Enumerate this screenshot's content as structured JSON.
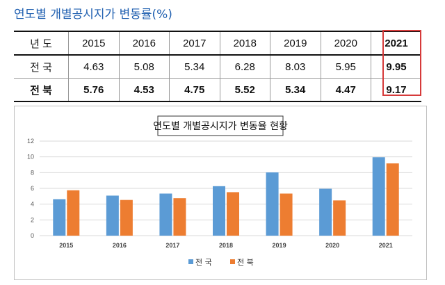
{
  "title": "연도별 개별공시지가 변동률(%)",
  "table": {
    "header_label": "년 도",
    "years": [
      "2015",
      "2016",
      "2017",
      "2018",
      "2019",
      "2020",
      "2021"
    ],
    "rows": [
      {
        "label": "전 국",
        "values": [
          "4.63",
          "5.08",
          "5.34",
          "6.28",
          "8.03",
          "5.95",
          "9.95"
        ]
      },
      {
        "label": "전 북",
        "values": [
          "5.76",
          "4.53",
          "4.75",
          "5.52",
          "5.34",
          "4.47",
          "9.17"
        ]
      }
    ],
    "highlight_color": "#d63a3a"
  },
  "chart_data": {
    "type": "bar",
    "title": "연도별 개별공시지가 변동율 현황",
    "categories": [
      "2015",
      "2016",
      "2017",
      "2018",
      "2019",
      "2020",
      "2021"
    ],
    "series": [
      {
        "name": "전 국",
        "color": "#5b9bd5",
        "values": [
          4.63,
          5.08,
          5.34,
          6.28,
          8.03,
          5.95,
          9.95
        ]
      },
      {
        "name": "전 북",
        "color": "#ed7d31",
        "values": [
          5.76,
          4.53,
          4.75,
          5.52,
          5.34,
          4.47,
          9.17
        ]
      }
    ],
    "ylim": [
      0,
      12
    ],
    "yticks": [
      "0",
      "2",
      "4",
      "6",
      "8",
      "10",
      "12"
    ],
    "grid": true,
    "legend": "bottom",
    "xlabel": "",
    "ylabel": ""
  }
}
